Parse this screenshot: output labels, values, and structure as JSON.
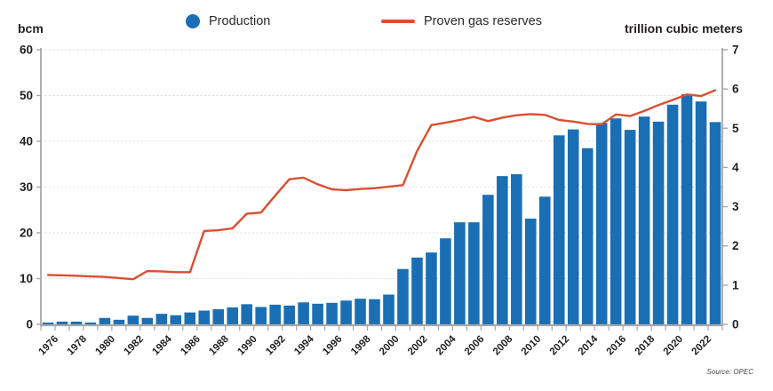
{
  "header": {
    "left_axis_title": "bcm",
    "right_axis_title": "trillion cubic meters"
  },
  "legend": {
    "production_label": "Production",
    "reserves_label": "Proven gas reserves"
  },
  "source": "Source: OPEC",
  "colors": {
    "bar": "#1a6fb4",
    "line": "#d94f33",
    "axis": "#a8a8a8",
    "grid": "#d0d0d0",
    "text": "#231f20"
  },
  "chart_data": {
    "type": "combo-bar-line",
    "categories": [
      "1975",
      "1976",
      "1977",
      "1978",
      "1979",
      "1980",
      "1981",
      "1982",
      "1983",
      "1984",
      "1985",
      "1986",
      "1987",
      "1988",
      "1989",
      "1990",
      "1991",
      "1992",
      "1993",
      "1994",
      "1995",
      "1996",
      "1997",
      "1998",
      "1999",
      "2000",
      "2001",
      "2002",
      "2003",
      "2004",
      "2005",
      "2006",
      "2007",
      "2008",
      "2009",
      "2010",
      "2011",
      "2012",
      "2013",
      "2014",
      "2015",
      "2016",
      "2017",
      "2018",
      "2019",
      "2020",
      "2021",
      "2022"
    ],
    "series": [
      {
        "name": "Production",
        "type": "bar",
        "axis": "left",
        "unit": "bcm",
        "color": "#1a6fb4",
        "values": [
          0.4,
          0.6,
          0.6,
          0.4,
          1.4,
          1.0,
          1.9,
          1.4,
          2.3,
          2.0,
          2.6,
          3.0,
          3.3,
          3.7,
          4.4,
          3.8,
          4.3,
          4.1,
          4.8,
          4.5,
          4.7,
          5.2,
          5.6,
          5.5,
          6.5,
          12.1,
          14.6,
          15.7,
          18.8,
          22.3,
          22.3,
          28.3,
          32.4,
          32.8,
          23.1,
          27.9,
          41.3,
          42.6,
          38.5,
          44.0,
          45.0,
          42.5,
          45.4,
          44.3,
          48.0,
          50.3,
          48.7,
          44.2
        ]
      },
      {
        "name": "Proven gas reserves",
        "type": "line",
        "axis": "right",
        "unit": "trillion cubic meters",
        "color": "#d94f33",
        "values": [
          1.26,
          1.25,
          1.24,
          1.22,
          1.21,
          1.18,
          1.15,
          1.36,
          1.35,
          1.33,
          1.33,
          2.38,
          2.4,
          2.45,
          2.82,
          2.85,
          3.28,
          3.7,
          3.74,
          3.57,
          3.44,
          3.42,
          3.45,
          3.47,
          3.51,
          3.55,
          4.42,
          5.08,
          5.14,
          5.21,
          5.29,
          5.18,
          5.27,
          5.33,
          5.36,
          5.34,
          5.21,
          5.17,
          5.11,
          5.1,
          5.35,
          5.31,
          5.44,
          5.59,
          5.72,
          5.86,
          5.82,
          5.97
        ]
      }
    ],
    "left_axis": {
      "label": "bcm",
      "min": 0,
      "max": 60,
      "ticks": [
        0,
        10,
        20,
        30,
        40,
        50,
        60
      ]
    },
    "right_axis": {
      "label": "trillion cubic meters",
      "min": 0,
      "max": 7,
      "ticks": [
        0,
        1,
        2,
        3,
        4,
        5,
        6,
        7
      ]
    },
    "x_tick_labels": [
      "1976",
      "1978",
      "1980",
      "1982",
      "1984",
      "1986",
      "1988",
      "1990",
      "1992",
      "1994",
      "1996",
      "1998",
      "2000",
      "2002",
      "2004",
      "2006",
      "2008",
      "2010",
      "2012",
      "2014",
      "2016",
      "2018",
      "2020",
      "2022"
    ],
    "grid": "horizontal-dotted",
    "legend_position": "top",
    "source": "Source: OPEC"
  }
}
